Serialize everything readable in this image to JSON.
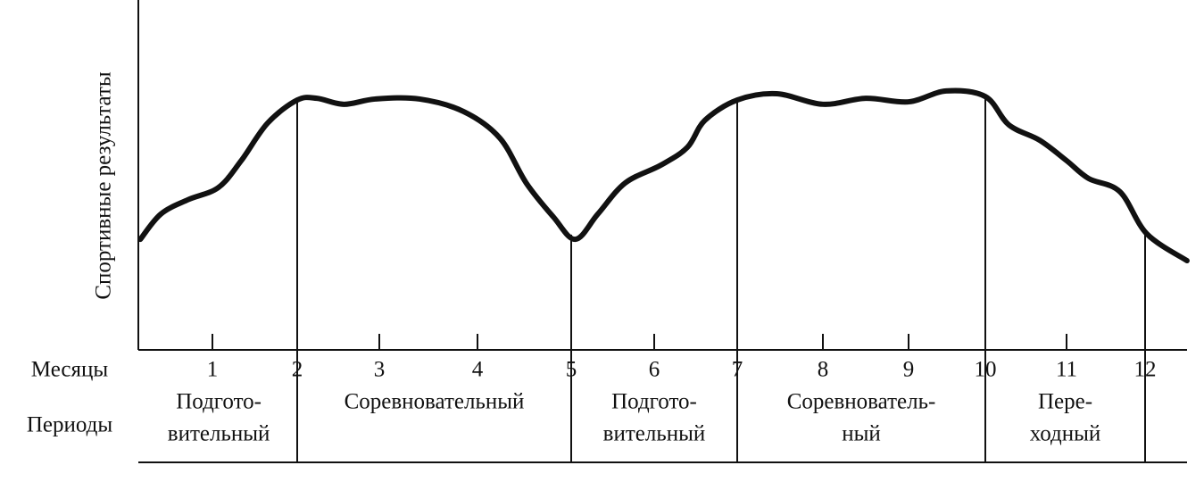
{
  "chart_data": {
    "type": "line",
    "y_label": "Спортивные результаты",
    "x_row_label": "Месяцы",
    "period_row_label": "Периоды",
    "x": [
      0.15,
      0.39,
      0.71,
      1.07,
      1.34,
      1.65,
      2.0,
      2.24,
      2.57,
      2.95,
      3.41,
      3.86,
      4.24,
      4.52,
      4.81,
      5.05,
      5.32,
      5.65,
      6.08,
      6.4,
      6.61,
      7.0,
      7.46,
      8.0,
      8.5,
      9.0,
      9.49,
      10.0,
      10.29,
      10.67,
      11.0,
      11.28,
      11.68,
      12.02,
      12.51
    ],
    "series": [
      {
        "color": "#111111",
        "values": [
          31.6,
          38.8,
          42.9,
          46.4,
          54.1,
          64.8,
          71.4,
          71.9,
          70.2,
          71.7,
          71.7,
          68.1,
          60.5,
          47.7,
          38.0,
          31.6,
          38.8,
          47.7,
          52.8,
          57.9,
          65.6,
          71.4,
          73.2,
          70.2,
          71.9,
          70.9,
          74.0,
          72.4,
          64.3,
          59.9,
          54.1,
          49.0,
          45.2,
          33.2,
          25.5
        ]
      }
    ],
    "xlim": [
      0.15,
      12.5
    ],
    "xticks": [
      1,
      2,
      3,
      4,
      5,
      6,
      7,
      8,
      9,
      10,
      11,
      12
    ],
    "ylim": [
      0,
      100
    ],
    "periods": [
      {
        "label": [
          "Подгото-",
          "вительный"
        ],
        "end": 2
      },
      {
        "label": [
          "Соревновательный"
        ],
        "end": 5
      },
      {
        "label": [
          "Подгото-",
          "вительный"
        ],
        "end": 7
      },
      {
        "label": [
          "Соревнователь-",
          "ный"
        ],
        "end": 10
      },
      {
        "label": [
          "Пере-",
          "ходный"
        ],
        "end": 12
      }
    ]
  }
}
